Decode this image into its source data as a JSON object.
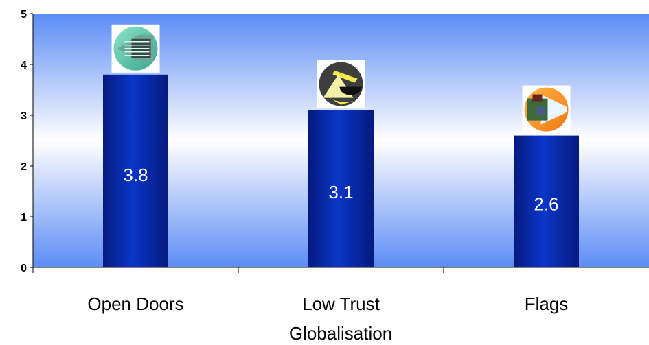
{
  "chart_data": {
    "type": "bar",
    "categories": [
      "Open Doors",
      "Low Trust",
      "Flags"
    ],
    "values": [
      3.8,
      3.1,
      2.6
    ],
    "data_labels": [
      "3.8",
      "3.1",
      "2.6"
    ],
    "xlabel": "Globalisation",
    "ylabel": "",
    "ylim": [
      0,
      5
    ],
    "yticks": [
      0,
      1,
      2,
      3,
      4,
      5
    ],
    "grid": false,
    "legend": "none",
    "bar_icons": [
      "arrow-icon",
      "scales-icon",
      "globe-flag-icon"
    ]
  },
  "colors": {
    "bar": "#0a2fb0",
    "bar_dark": "#061a80",
    "plot_top": "#5b8cf5",
    "plot_mid": "#ffffff",
    "plot_bottom": "#5b8cf5"
  }
}
